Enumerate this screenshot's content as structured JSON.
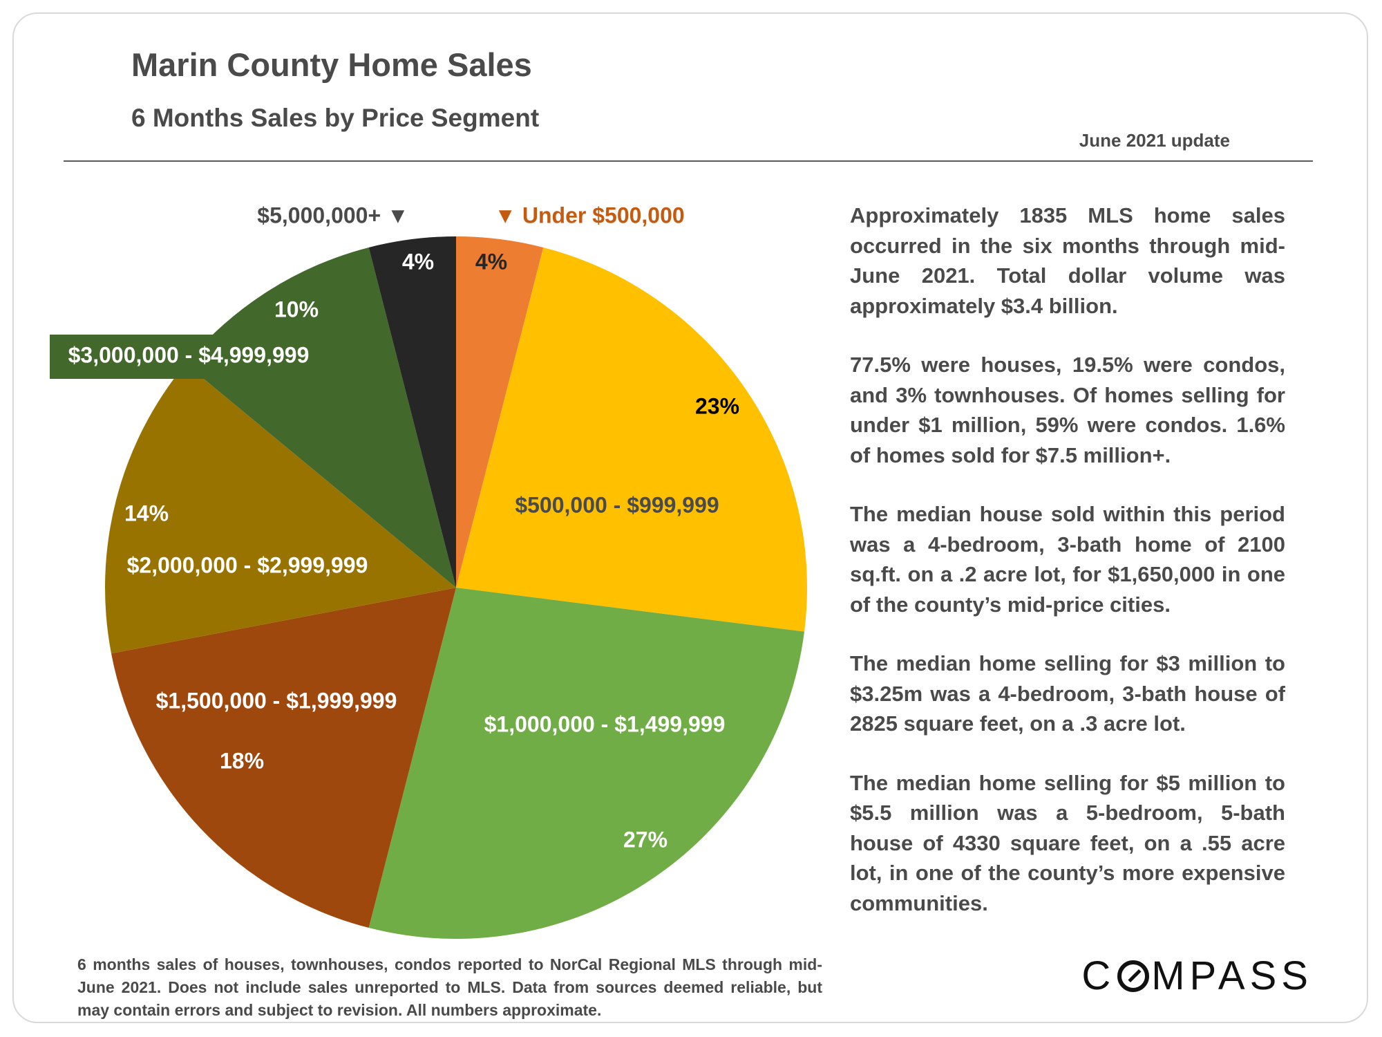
{
  "header": {
    "title": "Marin County Home Sales",
    "subtitle": "6 Months Sales by Price Segment",
    "update": "June 2021 update"
  },
  "chart_data": {
    "type": "pie",
    "start_angle": "12 o'clock",
    "direction": "clockwise",
    "slices": [
      {
        "label": "Under $500,000",
        "value": 4,
        "value_label": "4%",
        "color": "#ED7D31",
        "label_color": "#C55A11",
        "marker": "▼"
      },
      {
        "label": "$500,000 - $999,999",
        "value": 23,
        "value_label": "23%",
        "color": "#FFC000",
        "label_color": "#4a4a4a"
      },
      {
        "label": "$1,000,000 - $1,499,999",
        "value": 27,
        "value_label": "27%",
        "color": "#70AD47",
        "label_color": "#ffffff"
      },
      {
        "label": "$1,500,000 - $1,999,999",
        "value": 18,
        "value_label": "18%",
        "color": "#9E480E",
        "label_color": "#ffffff"
      },
      {
        "label": "$2,000,000 - $2,999,999",
        "value": 14,
        "value_label": "14%",
        "color": "#997300",
        "label_color": "#ffffff"
      },
      {
        "label": "$3,000,000 - $4,999,999",
        "value": 10,
        "value_label": "10%",
        "color": "#43682B",
        "label_color": "#ffffff"
      },
      {
        "label": "$5,000,000+",
        "value": 4,
        "value_label": "4%",
        "color": "#262626",
        "label_color": "#4a4a4a",
        "marker": "▼"
      }
    ]
  },
  "paragraphs": [
    "Approximately 1835 MLS home sales occurred in the six months through mid-June 2021. Total dollar volume was approximately $3.4 billion.",
    "77.5% were houses, 19.5% were condos, and 3% townhouses. Of homes selling for under $1 million, 59% were condos. 1.6% of homes sold for $7.5 million+.",
    "The median house sold within this period was a 4-bedroom, 3-bath home of 2100 sq.ft. on a .2 acre lot, for $1,650,000 in one of the county’s mid-price cities.",
    "The median home selling for $3 million to $3.25m was a 4-bedroom, 3-bath house of 2825 square feet, on a .3 acre lot.",
    "The median home selling for $5 million to $5.5 million was a 5-bedroom, 5-bath house of 4330 square feet, on a .55 acre lot, in one of the county’s more expensive communities."
  ],
  "footnote": "6 months sales of houses, townhouses, condos reported to NorCal Regional MLS through mid-June 2021. Does not include sales unreported to MLS. Data from sources deemed reliable, but may contain errors and subject to revision. All numbers approximate.",
  "logo": {
    "before": "C",
    "after": "MPASS"
  }
}
